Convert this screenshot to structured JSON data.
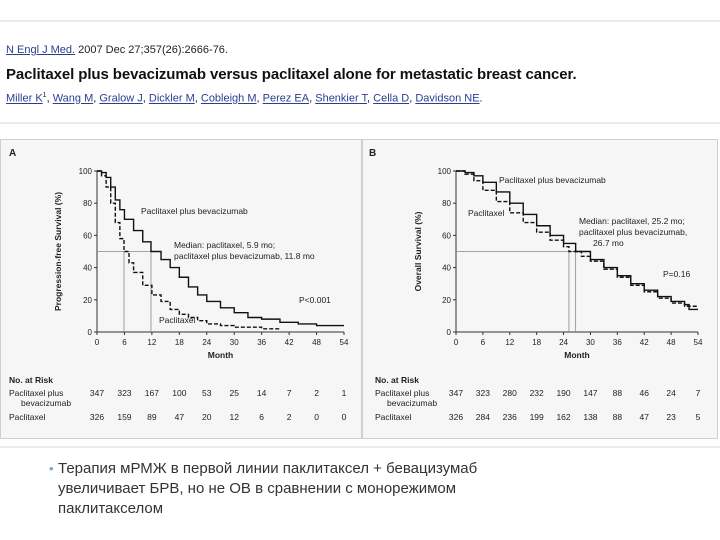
{
  "citation": {
    "journal_link": "N Engl J Med.",
    "journal_rest": " 2007 Dec 27;357(26):2666-76.",
    "title": "Paclitaxel plus bevacizumab versus paclitaxel alone for metastatic breast cancer.",
    "authors": [
      {
        "name": "Miller K",
        "sup": "1"
      },
      {
        "name": "Wang M"
      },
      {
        "name": "Gralow J"
      },
      {
        "name": "Dickler M"
      },
      {
        "name": "Cobleigh M"
      },
      {
        "name": "Perez EA"
      },
      {
        "name": "Shenkier T"
      },
      {
        "name": "Cella D"
      },
      {
        "name": "Davidson NE"
      }
    ]
  },
  "bullet": {
    "line1": "Терапия мРМЖ в первой линии паклитаксел + бевацизумаб",
    "line2": "увеличивает БРВ, но не ОВ в сравнении с монорежимом",
    "line3": "паклитакселом"
  },
  "colors": {
    "curve": "#111111",
    "axis": "#333333",
    "guide": "#888888"
  },
  "chart_data": [
    {
      "type": "line",
      "panel": "A",
      "ylabel": "Progression-free Survival (%)",
      "xlabel": "Month",
      "xlim": [
        0,
        54
      ],
      "ylim": [
        0,
        100
      ],
      "x_ticks": [
        0,
        6,
        12,
        18,
        24,
        30,
        36,
        42,
        48,
        54
      ],
      "y_ticks": [
        0,
        20,
        40,
        60,
        80,
        100
      ],
      "series": [
        {
          "name": "Paclitaxel plus bevacizumab",
          "style": "solid",
          "x": [
            0,
            1,
            2,
            3,
            4,
            5,
            6,
            8,
            10,
            11.8,
            14,
            16,
            18,
            20,
            22,
            24,
            27,
            30,
            33,
            36,
            40,
            44,
            48,
            54
          ],
          "y": [
            100,
            99,
            96,
            90,
            82,
            76,
            70,
            63,
            56,
            50,
            45,
            40,
            34,
            28,
            23,
            19,
            15,
            12,
            9,
            8,
            6,
            5,
            4,
            4
          ]
        },
        {
          "name": "Paclitaxel",
          "style": "dashed",
          "x": [
            0,
            1,
            2,
            3,
            4,
            5,
            5.9,
            7,
            8,
            10,
            12,
            14,
            16,
            18,
            20,
            22,
            24,
            27,
            30,
            36,
            40
          ],
          "y": [
            100,
            97,
            90,
            80,
            68,
            58,
            50,
            43,
            37,
            29,
            23,
            19,
            14,
            11,
            9,
            7,
            5,
            4,
            3,
            2,
            2
          ]
        }
      ],
      "annotations": {
        "series1_label": "Paclitaxel plus bevacizumab",
        "series2_label": "Paclitaxel",
        "median_line1": "Median: paclitaxel, 5.9 mo;",
        "median_line2": "paclitaxel plus bevacizumab, 11.8 mo",
        "median_x": [
          5.9,
          11.8
        ],
        "p_value": "P<0.001"
      },
      "at_risk": {
        "header": "No. at Risk",
        "rows": [
          {
            "label": "Paclitaxel plus",
            "label2": "bevacizumab",
            "values": [
              347,
              323,
              167,
              100,
              53,
              25,
              14,
              7,
              2,
              1
            ]
          },
          {
            "label": "Paclitaxel",
            "values": [
              326,
              159,
              89,
              47,
              20,
              12,
              6,
              2,
              0,
              0
            ]
          }
        ]
      }
    },
    {
      "type": "line",
      "panel": "B",
      "ylabel": "Overall Survival (%)",
      "xlabel": "Month",
      "xlim": [
        0,
        54
      ],
      "ylim": [
        0,
        100
      ],
      "x_ticks": [
        0,
        6,
        12,
        18,
        24,
        30,
        36,
        42,
        48,
        54
      ],
      "y_ticks": [
        0,
        20,
        40,
        60,
        80,
        100
      ],
      "series": [
        {
          "name": "Paclitaxel plus bevacizumab",
          "style": "solid",
          "x": [
            0,
            2,
            4,
            6,
            9,
            12,
            15,
            18,
            21,
            24,
            26.7,
            30,
            33,
            36,
            39,
            42,
            45,
            48,
            51,
            52,
            54
          ],
          "y": [
            100,
            99,
            97,
            93,
            87,
            80,
            73,
            66,
            60,
            55,
            50,
            45,
            40,
            35,
            30,
            26,
            22,
            19,
            17,
            14,
            14
          ]
        },
        {
          "name": "Paclitaxel",
          "style": "dashed",
          "x": [
            0,
            2,
            4,
            6,
            9,
            12,
            15,
            18,
            21,
            24,
            25.2,
            28,
            30,
            33,
            36,
            39,
            42,
            45,
            48,
            51,
            54
          ],
          "y": [
            100,
            98,
            94,
            88,
            81,
            74,
            68,
            62,
            57,
            53,
            50,
            47,
            44,
            39,
            34,
            29,
            25,
            21,
            18,
            16,
            16
          ]
        }
      ],
      "annotations": {
        "series1_label": "Paclitaxel plus bevacizumab",
        "series2_label": "Paclitaxel",
        "median_line1": "Median: paclitaxel, 25.2 mo;",
        "median_line2": "paclitaxel plus bevacizumab,",
        "median_line3": "26.7 mo",
        "median_x": [
          25.2,
          26.7
        ],
        "p_value": "P=0.16"
      },
      "at_risk": {
        "header": "No. at Risk",
        "rows": [
          {
            "label": "Paclitaxel plus",
            "label2": "bevacizumab",
            "values": [
              347,
              323,
              280,
              232,
              190,
              147,
              88,
              46,
              24,
              7
            ]
          },
          {
            "label": "Paclitaxel",
            "values": [
              326,
              284,
              236,
              199,
              162,
              138,
              88,
              47,
              23,
              5
            ]
          }
        ]
      }
    }
  ]
}
